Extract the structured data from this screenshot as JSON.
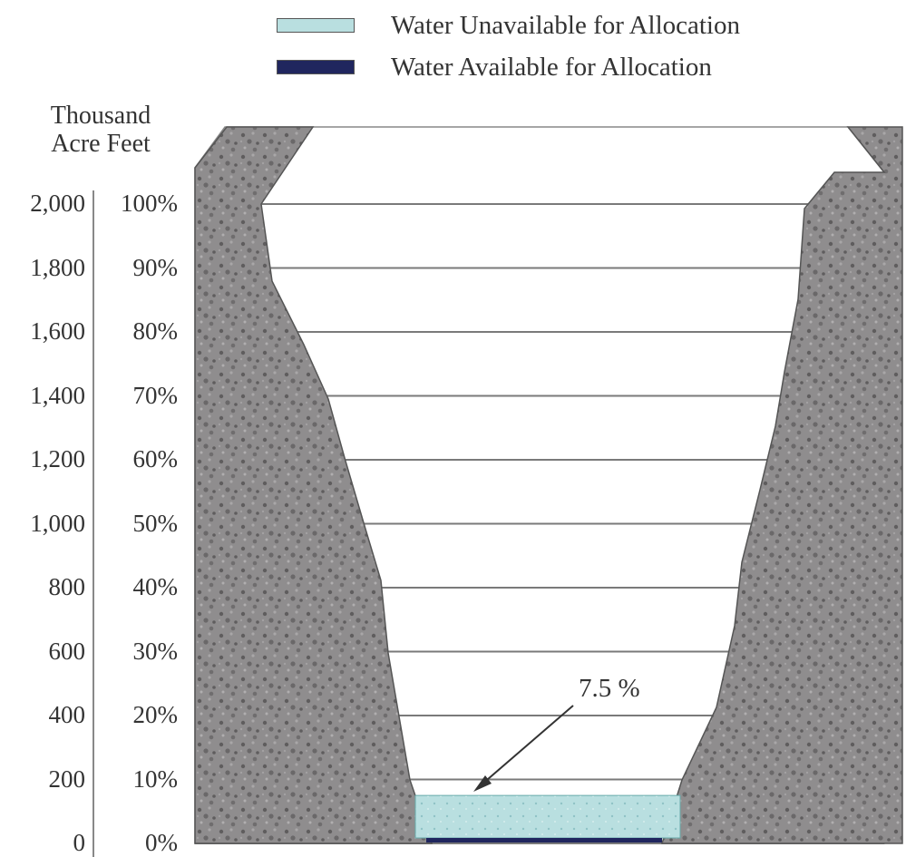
{
  "legend": [
    {
      "label": "Water Unavailable for Allocation",
      "color": "#b9dfe0"
    },
    {
      "label": "Water Available for Allocation",
      "color": "#20265e"
    }
  ],
  "axis": {
    "unit_label_line1": "Thousand",
    "unit_label_line2": "Acre Feet"
  },
  "chart_data": {
    "type": "area",
    "title": "",
    "left_axis": {
      "label": "Thousand Acre Feet",
      "ticks": [
        "2,000",
        "1,800",
        "1,600",
        "1,400",
        "1,200",
        "1,000",
        "800",
        "600",
        "400",
        "200",
        "0"
      ],
      "range": [
        0,
        2000
      ]
    },
    "right_axis": {
      "ticks": [
        "100%",
        "90%",
        "80%",
        "70%",
        "60%",
        "50%",
        "40%",
        "30%",
        "20%",
        "10%",
        "0%"
      ],
      "range": [
        0,
        100
      ]
    },
    "series": [
      {
        "name": "Water Unavailable for Allocation",
        "value_percent": 7.5
      },
      {
        "name": "Water Available for Allocation",
        "value_percent": 0
      }
    ],
    "annotation": "7.5 %",
    "grid": true,
    "legend_position": "top"
  },
  "colors": {
    "rock": "#8f8d8e",
    "rock_dark": "#5f5d5e",
    "grid": "#7a7a7a",
    "water_unavailable": "#b9dfe0",
    "water_available": "#20265e"
  }
}
